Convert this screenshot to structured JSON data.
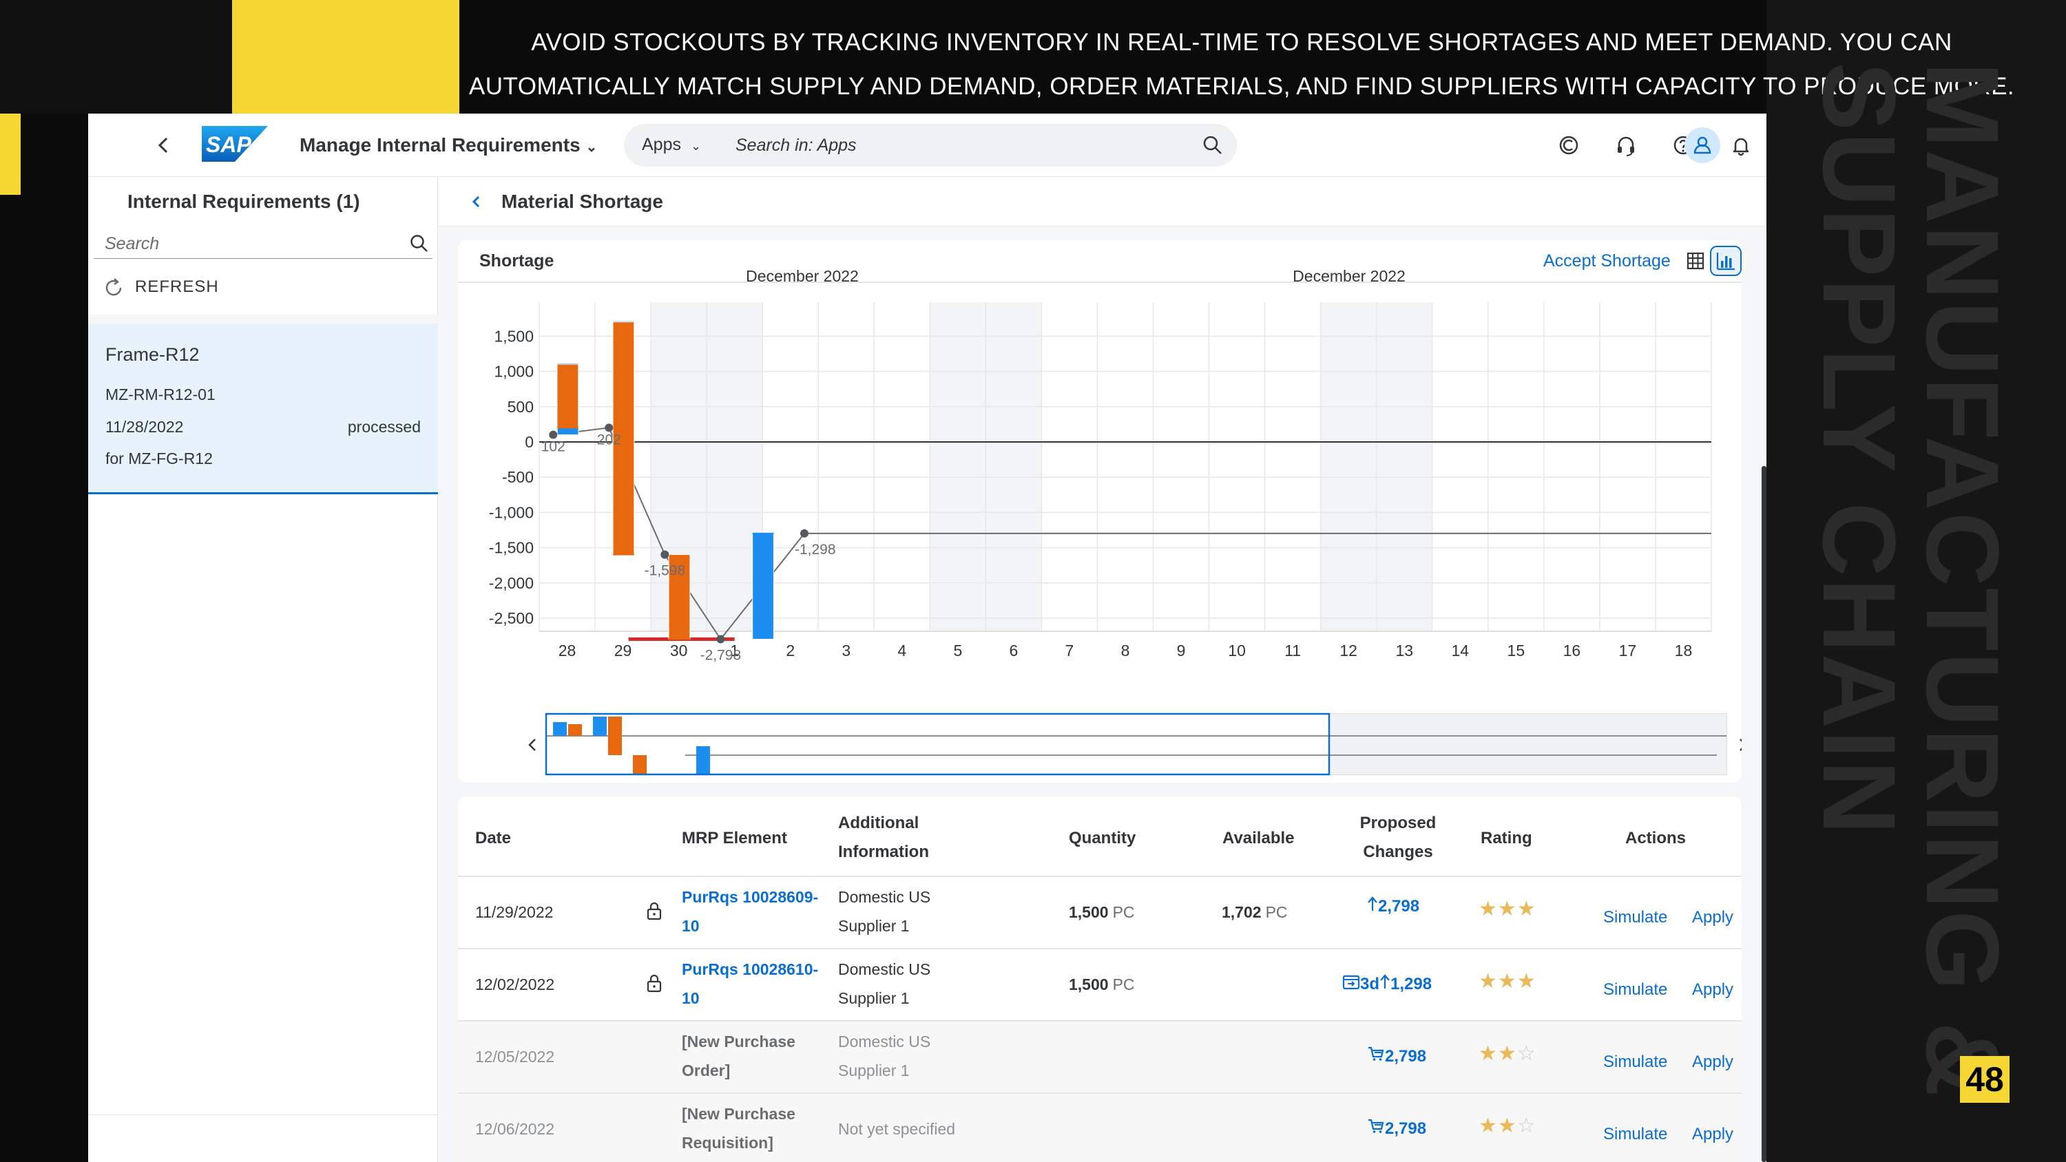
{
  "slide": {
    "headline_line1": "AVOID STOCKOUTS BY TRACKING INVENTORY IN REAL-TIME TO RESOLVE SHORTAGES AND MEET DEMAND. YOU CAN",
    "headline_line2": "AUTOMATICALLY MATCH SUPPLY AND DEMAND, ORDER MATERIALS, AND FIND SUPPLIERS WITH CAPACITY TO PRODUCE MORE.",
    "vertical_line1": "MANUFACTURING &",
    "vertical_line2": "SUPPLY CHAIN",
    "page_number": "48"
  },
  "shell": {
    "logo_text": "SAP",
    "app_title": "Manage Internal Requirements",
    "search_scope": "Apps",
    "search_placeholder": "Search in: Apps",
    "icons": [
      "copilot-icon",
      "headset-icon",
      "help-icon",
      "bell-icon",
      "user-avatar-icon"
    ]
  },
  "master": {
    "title": "Internal Requirements (1)",
    "search_placeholder": "Search",
    "refresh_label": "REFRESH",
    "item": {
      "title": "Frame-R12",
      "material": "MZ-RM-R12-01",
      "date": "11/28/2022",
      "status": "processed",
      "for_material": "for MZ-FG-R12"
    }
  },
  "detail": {
    "title": "Material Shortage",
    "card_title": "Shortage",
    "accept_label": "Accept Shortage"
  },
  "chart_data": {
    "type": "bar",
    "month_labels": [
      "December 2022",
      "December 2022"
    ],
    "y_ticks": [
      1500,
      1000,
      500,
      0,
      -500,
      -1000,
      -1500,
      -2000,
      -2500
    ],
    "y_tick_labels": [
      "1,500",
      "1,000",
      "500",
      "0",
      "-500",
      "-1,000",
      "-1,500",
      "-2,000",
      "-2,500"
    ],
    "ylim": [
      -2800,
      1750
    ],
    "x_labels": [
      "28",
      "29",
      "30",
      "1",
      "2",
      "3",
      "4",
      "5",
      "6",
      "7",
      "8",
      "9",
      "10",
      "11",
      "12",
      "13",
      "14",
      "15",
      "16",
      "17",
      "18"
    ],
    "bars": [
      {
        "day_index": 0,
        "offset": -0.5,
        "from": 102,
        "to": 1102,
        "kind": "receipt"
      },
      {
        "day_index": 0,
        "offset": 0.5,
        "from": 1102,
        "to": 202,
        "kind": "requirement"
      },
      {
        "day_index": 1,
        "offset": -0.5,
        "from": 202,
        "to": 1702,
        "kind": "receipt"
      },
      {
        "day_index": 1,
        "offset": 0.5,
        "from": 1702,
        "to": -1598,
        "kind": "requirement"
      },
      {
        "day_index": 2,
        "offset": 0.5,
        "from": -1598,
        "to": -2798,
        "kind": "requirement"
      },
      {
        "day_index": 3,
        "offset": 1.5,
        "from": -2798,
        "to": -1298,
        "kind": "receipt"
      }
    ],
    "shortage_segment": {
      "from_index": 1.6,
      "to_index": 3.5,
      "value": -2798
    },
    "balance_points": [
      {
        "index": 0,
        "offset": -0.5,
        "value": 102,
        "label": "102"
      },
      {
        "index": 1,
        "offset": -0.5,
        "value": 202,
        "label": "202"
      },
      {
        "index": 2,
        "offset": -0.5,
        "value": -1598,
        "label": "-1,598"
      },
      {
        "index": 3,
        "offset": -0.5,
        "value": -2798,
        "label": "-2,798"
      },
      {
        "index": 4,
        "offset": 0.5,
        "value": -1298,
        "label": "-1,298"
      }
    ],
    "grid": true,
    "colors": {
      "receipt": "#1c8ef0",
      "requirement": "#e8680f",
      "shortage": "#d42a2a",
      "balance": "#6a6d70"
    }
  },
  "table": {
    "headers": {
      "date": "Date",
      "mrp": "MRP Element",
      "info_1": "Additional",
      "info_2": "Information",
      "quantity": "Quantity",
      "available": "Available",
      "proposed_1": "Proposed",
      "proposed_2": "Changes",
      "rating": "Rating",
      "actions": "Actions"
    },
    "rows": [
      {
        "date": "11/29/2022",
        "mrp_1": "PurRqs 10028609-",
        "mrp_2": "10",
        "info_1": "Domestic US",
        "info_2": "Supplier 1",
        "qty": "1,500",
        "qty_unit": "PC",
        "avail": "1,702",
        "avail_unit": "PC",
        "proposed": "2,798",
        "delay": "",
        "stars": 3,
        "simulate": "Simulate",
        "apply": "Apply"
      },
      {
        "date": "12/02/2022",
        "mrp_1": "PurRqs 10028610-",
        "mrp_2": "10",
        "info_1": "Domestic US",
        "info_2": "Supplier 1",
        "qty": "1,500",
        "qty_unit": "PC",
        "avail": "",
        "avail_unit": "",
        "proposed": "1,298",
        "delay": "3d",
        "stars": 3,
        "simulate": "Simulate",
        "apply": "Apply"
      },
      {
        "date": "12/05/2022",
        "mrp_1": "[New Purchase",
        "mrp_2": "Order]",
        "info_1": "Domestic US",
        "info_2": "Supplier 1",
        "qty": "",
        "qty_unit": "",
        "avail": "",
        "avail_unit": "",
        "proposed": "2,798",
        "delay": "",
        "stars": 2,
        "simulate": "Simulate",
        "apply": "Apply"
      },
      {
        "date": "12/06/2022",
        "mrp_1": "[New Purchase",
        "mrp_2": "Requisition]",
        "info_1": "Not yet specified",
        "info_2": "",
        "qty": "",
        "qty_unit": "",
        "avail": "",
        "avail_unit": "",
        "proposed": "2,798",
        "delay": "",
        "stars": 2,
        "simulate": "Simulate",
        "apply": "Apply"
      }
    ]
  }
}
